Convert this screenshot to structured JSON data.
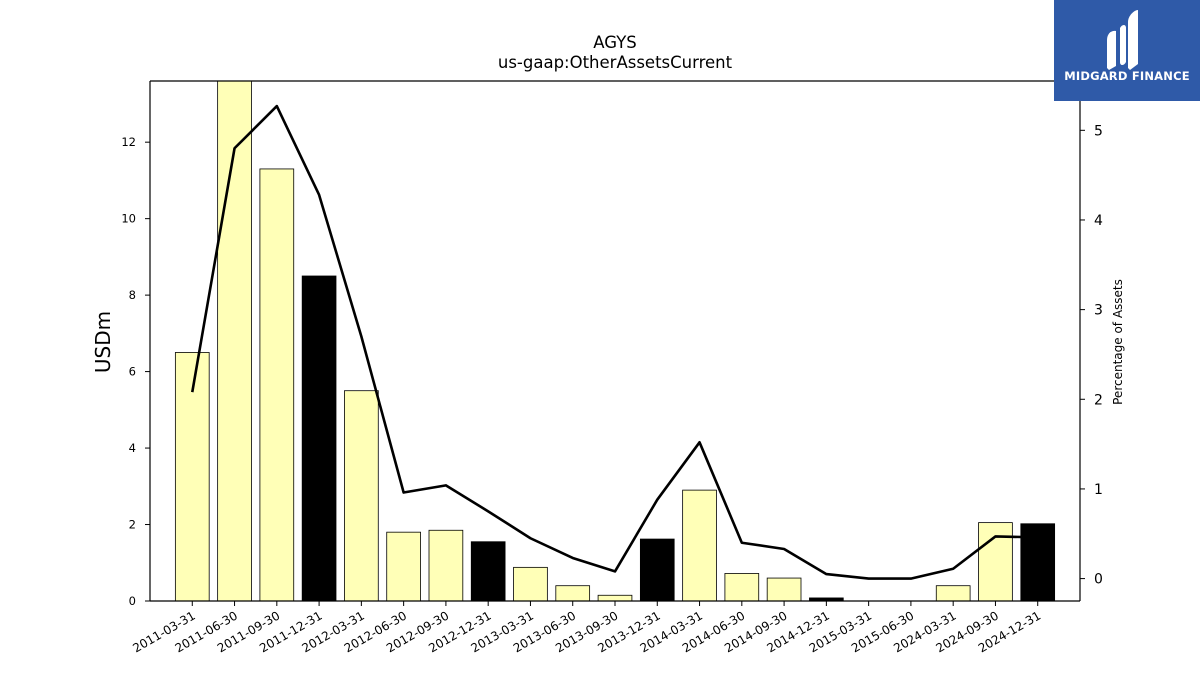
{
  "chart_data": {
    "type": "bar",
    "title": "AGYS",
    "subtitle": "us-gaap:OtherAssetsCurrent",
    "ylabel": "USDm",
    "y2label": "Percentage of Assets",
    "ylim": [
      0,
      13.6
    ],
    "y2lim": [
      -0.25,
      5.55
    ],
    "yticks": [
      0,
      2,
      4,
      6,
      8,
      10,
      12
    ],
    "y2ticks": [
      0,
      1,
      2,
      3,
      4,
      5
    ],
    "categories": [
      "2011-03-31",
      "2011-06-30",
      "2011-09-30",
      "2011-12-31",
      "2012-03-31",
      "2012-06-30",
      "2012-09-30",
      "2012-12-31",
      "2013-03-31",
      "2013-06-30",
      "2013-09-30",
      "2013-12-31",
      "2014-03-31",
      "2014-06-30",
      "2014-09-30",
      "2014-12-31",
      "2015-03-31",
      "2015-06-30",
      "2024-03-31",
      "2024-09-30",
      "2024-12-31"
    ],
    "series": [
      {
        "kind": "bar",
        "values": [
          6.5,
          13.6,
          11.3,
          8.5,
          5.5,
          1.8,
          1.85,
          1.55,
          0.88,
          0.4,
          0.15,
          1.62,
          2.9,
          0.72,
          0.6,
          0.08,
          0.0,
          0.0,
          0.4,
          2.05,
          2.02
        ],
        "colors": [
          "#ffffb7",
          "#ffffb7",
          "#ffffb7",
          "#000000",
          "#ffffb7",
          "#ffffb7",
          "#ffffb7",
          "#000000",
          "#ffffb7",
          "#ffffb7",
          "#ffffb7",
          "#000000",
          "#ffffb7",
          "#ffffb7",
          "#ffffb7",
          "#000000",
          "#ffffb7",
          "#ffffb7",
          "#ffffb7",
          "#ffffb7",
          "#000000"
        ]
      },
      {
        "kind": "line",
        "axis": "right",
        "values": [
          2.08,
          4.8,
          5.27,
          4.28,
          2.7,
          0.96,
          1.04,
          0.75,
          0.45,
          0.23,
          0.08,
          0.88,
          1.52,
          0.4,
          0.33,
          0.05,
          0.0,
          0.0,
          0.11,
          0.47,
          0.46
        ],
        "color": "#000000"
      }
    ]
  },
  "logo": {
    "text": "MIDGARD FINANCE",
    "bg": "#2f5aa8"
  }
}
